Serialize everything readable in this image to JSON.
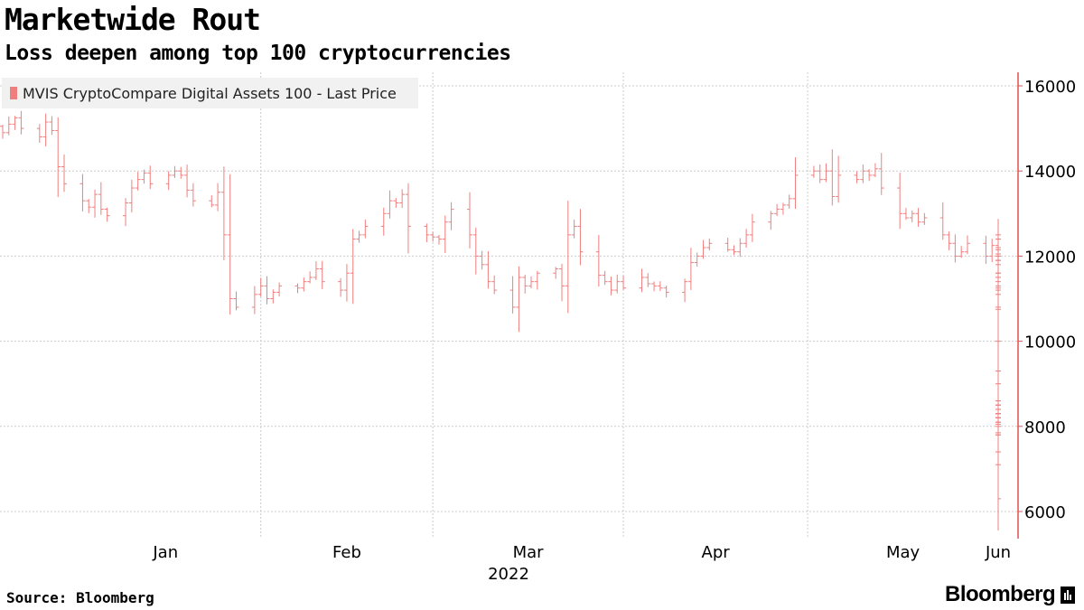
{
  "title": "Marketwide Rout",
  "subtitle": "Loss deepen among top 100 cryptocurrencies",
  "source": "Source: Bloomberg",
  "brand": "Bloomberg",
  "colors": {
    "series": "#ef7f7f",
    "grid": "#cccccc",
    "axis": "#e05050"
  },
  "chart_data": {
    "type": "ohlc",
    "year_label": "2022",
    "y_axis": {
      "position": "right",
      "min": 6000,
      "max": 16000,
      "ticks": [
        6000,
        8000,
        10000,
        12000,
        14000,
        16000
      ]
    },
    "x_axis": {
      "start_date": "2021-12-21",
      "end_date": "2022-06-01",
      "months": [
        {
          "label": "Jan",
          "date": "2022-01-01"
        },
        {
          "label": "Feb",
          "date": "2022-02-01"
        },
        {
          "label": "Mar",
          "date": "2022-03-01"
        },
        {
          "label": "Apr",
          "date": "2022-04-01"
        },
        {
          "label": "May",
          "date": "2022-05-01"
        },
        {
          "label": "Jun",
          "date": "2022-06-01"
        }
      ]
    },
    "grid": true,
    "legend": {
      "position": "top-left",
      "entries": [
        "MVIS CryptoCompare Digital Assets 100 - Last Price"
      ]
    },
    "series": [
      {
        "name": "MVIS CryptoCompare Digital Assets 100 - Last Price",
        "close": [
          14900,
          15100,
          15250,
          15000,
          14800,
          15150,
          14950,
          14100,
          13700,
          13300,
          13150,
          13450,
          13100,
          12950,
          13250,
          13600,
          13800,
          13950,
          13700,
          13900,
          14000,
          13900,
          13550,
          13300,
          13200,
          13500,
          12500,
          11000,
          10800,
          11100,
          11300,
          11000,
          11150,
          11300,
          11250,
          11400,
          11500,
          11700,
          11400,
          11200,
          11600,
          12400,
          12500,
          12700,
          13000,
          13300,
          13250,
          13450,
          12700,
          12500,
          12450,
          12400,
          12800,
          13100,
          12500,
          12000,
          11800,
          11400,
          11200,
          10800,
          11500,
          11300,
          11400,
          11600,
          11700,
          11300,
          12500,
          12700,
          12100,
          11550,
          11400,
          11200,
          11400,
          11250,
          11500,
          11350,
          11300,
          11250,
          11150,
          11400,
          11850,
          12000,
          12200,
          12300,
          12150,
          12100,
          12300,
          12500,
          12800,
          13000,
          13100,
          13200,
          13350,
          13900,
          14000,
          13800,
          14000,
          13400,
          13900,
          13800,
          14000,
          13900,
          14050,
          13600,
          13000,
          12900,
          13000,
          12800,
          12900,
          12500,
          12300,
          12000,
          12100,
          12300,
          12000,
          12250,
          12200,
          12150,
          11900,
          12400,
          12500,
          12400,
          12050,
          12000,
          11900,
          12000,
          11600,
          11500,
          11800,
          11900,
          11500,
          11400,
          11200,
          11300,
          11250,
          11600,
          11100,
          10800,
          10750,
          10000,
          9300,
          9000,
          8500,
          8400,
          8200,
          8600,
          8300,
          8400,
          8600,
          8500,
          8300,
          8200,
          8300,
          8400,
          8200,
          8400,
          8200,
          8300,
          8100,
          7800,
          7850,
          8000,
          8100,
          8500,
          8600,
          8200,
          8300,
          8100,
          8200,
          8050,
          8100,
          8300,
          8200,
          8100,
          8100,
          7800,
          7400,
          7100,
          6300
        ]
      }
    ]
  }
}
